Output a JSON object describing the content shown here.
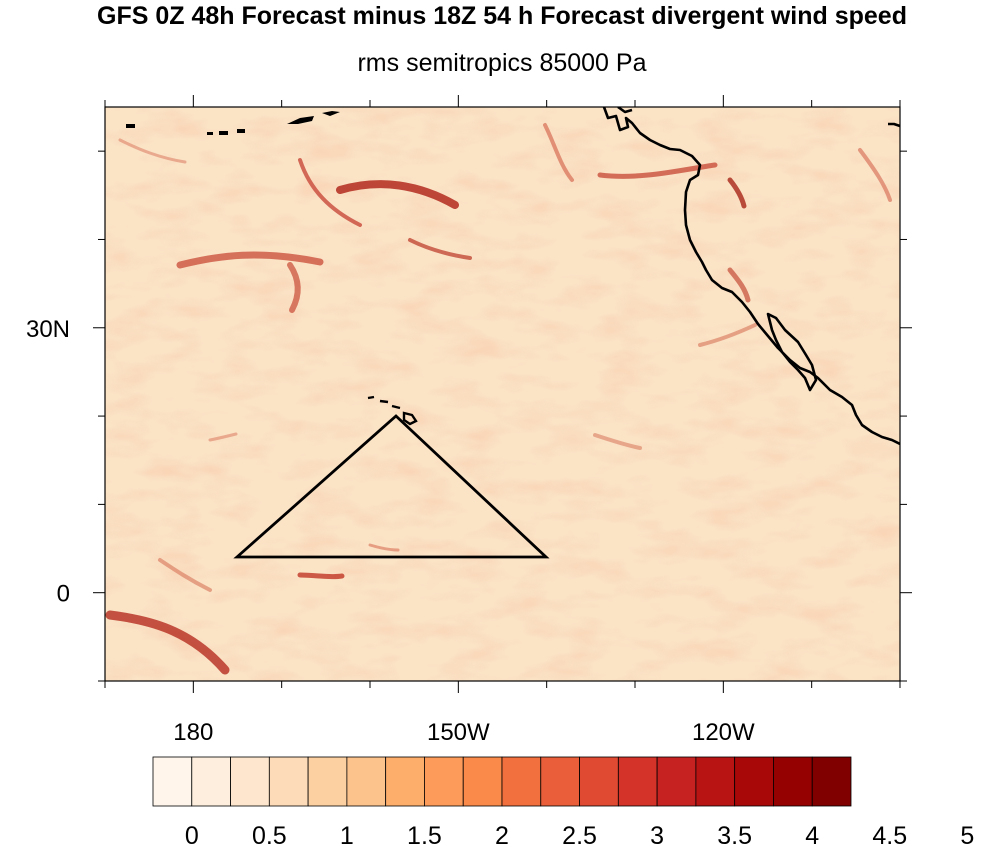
{
  "title": "GFS 0Z 48h Forecast minus 18Z 54 h Forecast divergent wind speed",
  "subtitle": "rms semitropics 85000 Pa",
  "map": {
    "lon_range": [
      170,
      260
    ],
    "lat_range": [
      -10,
      55
    ],
    "lat_labels": [
      {
        "lat": 30,
        "label": "30N"
      },
      {
        "lat": 0,
        "label": "0"
      }
    ],
    "lon_labels": [
      {
        "lon": 180,
        "label": "180"
      },
      {
        "lon": 210,
        "label": "150W"
      },
      {
        "lon": 240,
        "label": "120W"
      }
    ],
    "colors": {
      "background_field": "#fbe3c6",
      "coastline": "#000000",
      "region_outline": "#000000"
    }
  },
  "colorbar": {
    "labels": [
      "0",
      "0.5",
      "1",
      "1.5",
      "2",
      "2.5",
      "3",
      "3.5",
      "4",
      "4.5",
      "5"
    ],
    "colors": [
      "#fff5eb",
      "#fdeedd",
      "#fde6cd",
      "#fddbb8",
      "#fdd0a2",
      "#fdc38c",
      "#fdae6b",
      "#fd9c5a",
      "#f98a4a",
      "#f2703e",
      "#ea5f3a",
      "#e04a33",
      "#d33329",
      "#c62222",
      "#b81414",
      "#a80808",
      "#950000",
      "#800000"
    ]
  }
}
